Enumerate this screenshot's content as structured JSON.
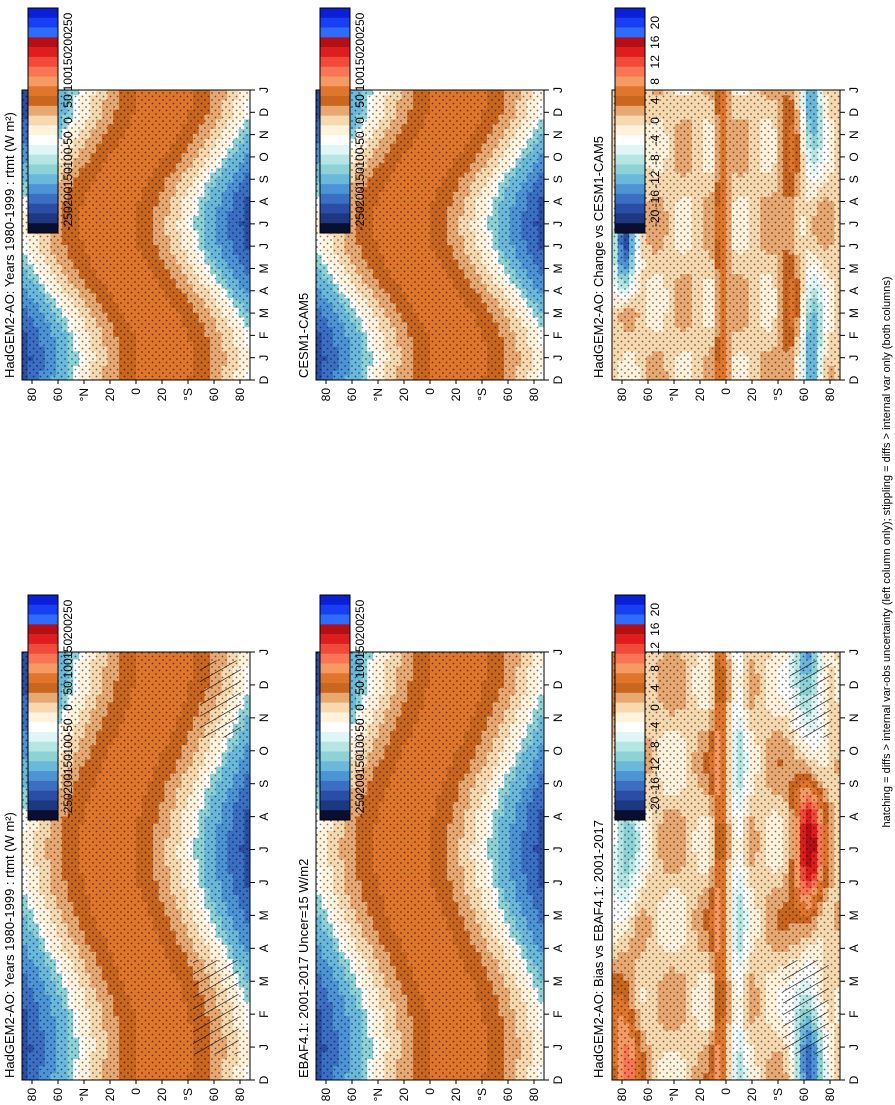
{
  "colorbars": {
    "flux": {
      "labels": [
        "250",
        "200",
        "150",
        "100",
        "50",
        "0",
        "-50",
        "-100",
        "-150",
        "-200",
        "-250"
      ],
      "colors": [
        "#0b1fd6",
        "#1740f5",
        "#2f6bff",
        "#b50f16",
        "#de1e1e",
        "#f24a3a",
        "#f87555",
        "#f59a63",
        "#e0762c",
        "#c9661f",
        "#e8a872",
        "#f7d9b0",
        "#fff3dd",
        "#ffffff",
        "#e0f5f5",
        "#b5e6e3",
        "#8dd2d6",
        "#6ab8dc",
        "#4d94d6",
        "#3a6fc4",
        "#2a4ea6",
        "#1d3780",
        "#0a0f30"
      ]
    },
    "diff": {
      "labels": [
        "20",
        "16",
        "12",
        "8",
        "4",
        "0",
        "-4",
        "-8",
        "-12",
        "-16",
        "-20"
      ],
      "colors": [
        "#0b1fd6",
        "#1740f5",
        "#2f6bff",
        "#b50f16",
        "#de1e1e",
        "#f24a3a",
        "#f87555",
        "#f59a63",
        "#e0762c",
        "#c9661f",
        "#e8a872",
        "#f7d9b0",
        "#fff3dd",
        "#ffffff",
        "#e0f5f5",
        "#b5e6e3",
        "#8dd2d6",
        "#6ab8dc",
        "#4d94d6",
        "#3a6fc4",
        "#2a4ea6",
        "#1d3780",
        "#0a0f30"
      ]
    }
  },
  "footnote": "hatching = diffs > internal var-obs uncertainty (left column only); stippling = diffs > internal var only (both columns)",
  "chart_data": [
    {
      "type": "heatmap",
      "title": "HadGEM2-AO: Years 1980-1999 : rtmt (W m²)",
      "x": [
        "D",
        "J",
        "F",
        "M",
        "A",
        "M",
        "J",
        "J",
        "A",
        "S",
        "O",
        "N",
        "D",
        "J"
      ],
      "y_ticks": [
        "80",
        "60",
        "°N",
        "20",
        "0",
        "20",
        "°S",
        "60",
        "80"
      ],
      "colorbar": "flux",
      "field": "seasonal",
      "hatching": true,
      "stippling": true
    },
    {
      "type": "heatmap",
      "title": "HadGEM2-AO: Years 1980-1999 : rtmt (W m²)",
      "x": [
        "D",
        "J",
        "F",
        "M",
        "A",
        "M",
        "J",
        "J",
        "A",
        "S",
        "O",
        "N",
        "D",
        "J"
      ],
      "y_ticks": [
        "80",
        "60",
        "°N",
        "20",
        "0",
        "20",
        "°S",
        "60",
        "80"
      ],
      "colorbar": "flux",
      "field": "seasonal",
      "hatching": false,
      "stippling": true
    },
    {
      "type": "heatmap",
      "title": "EBAF4.1: 2001-2017 Uncer=15 W/m2",
      "x": [
        "D",
        "J",
        "F",
        "M",
        "A",
        "M",
        "J",
        "J",
        "A",
        "S",
        "O",
        "N",
        "D",
        "J"
      ],
      "y_ticks": [
        "80",
        "60",
        "°N",
        "20",
        "0",
        "20",
        "°S",
        "60",
        "80"
      ],
      "colorbar": "flux",
      "field": "seasonal",
      "hatching": false,
      "stippling": true
    },
    {
      "type": "heatmap",
      "title": "CESM1-CAM5",
      "x": [
        "D",
        "J",
        "F",
        "M",
        "A",
        "M",
        "J",
        "J",
        "A",
        "S",
        "O",
        "N",
        "D",
        "J"
      ],
      "y_ticks": [
        "80",
        "60",
        "°N",
        "20",
        "0",
        "20",
        "°S",
        "60",
        "80"
      ],
      "colorbar": "flux",
      "field": "seasonal",
      "hatching": false,
      "stippling": true
    },
    {
      "type": "heatmap",
      "title": "HadGEM2-AO: Bias vs EBAF4.1: 2001-2017",
      "x": [
        "D",
        "J",
        "F",
        "M",
        "A",
        "M",
        "J",
        "J",
        "A",
        "S",
        "O",
        "N",
        "D",
        "J"
      ],
      "y_ticks": [
        "80",
        "60",
        "°N",
        "20",
        "0",
        "20",
        "°S",
        "60",
        "80"
      ],
      "colorbar": "diff",
      "field": "bias",
      "hatching": true,
      "stippling": true
    },
    {
      "type": "heatmap",
      "title": "HadGEM2-AO: Change vs CESM1-CAM5",
      "x": [
        "D",
        "J",
        "F",
        "M",
        "A",
        "M",
        "J",
        "J",
        "A",
        "S",
        "O",
        "N",
        "D",
        "J"
      ],
      "y_ticks": [
        "80",
        "60",
        "°N",
        "20",
        "0",
        "20",
        "°S",
        "60",
        "80"
      ],
      "colorbar": "diff",
      "field": "change",
      "hatching": false,
      "stippling": true
    }
  ]
}
